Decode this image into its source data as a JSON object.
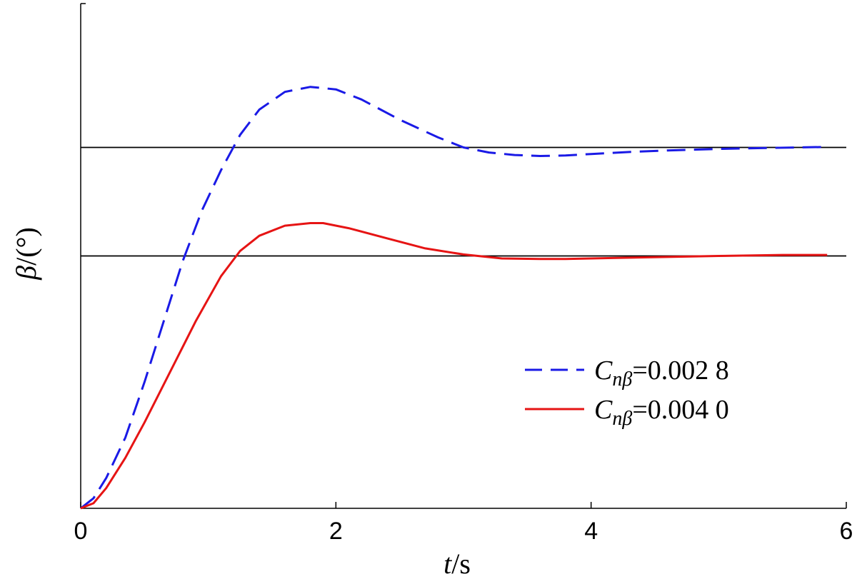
{
  "chart_data": {
    "type": "line",
    "title": "",
    "xlabel": {
      "var": "t",
      "sep": "/",
      "unit": "s"
    },
    "ylabel": {
      "var": "β",
      "sep": "/",
      "unit": "(°)"
    },
    "xlim": [
      0,
      6
    ],
    "x_ticks": [
      "0",
      "2",
      "4",
      "6"
    ],
    "y_ticks": [],
    "reference_lines": [
      {
        "name": "steady-state-upper",
        "y": 0.715
      },
      {
        "name": "steady-state-lower",
        "y": 0.5
      }
    ],
    "legend": {
      "position": "lower-right"
    },
    "series": [
      {
        "name": "C_nβ=0.002 8",
        "legend_main": "C",
        "legend_sub": "nβ",
        "legend_value": "=0.002 8",
        "color": "#1a1ae6",
        "style": "dashed",
        "x": [
          0,
          0.1,
          0.2,
          0.35,
          0.5,
          0.65,
          0.8,
          0.95,
          1.1,
          1.25,
          1.4,
          1.6,
          1.8,
          2.0,
          2.2,
          2.5,
          2.8,
          3.0,
          3.2,
          3.4,
          3.6,
          3.8,
          4.0,
          4.3,
          4.6,
          5.0,
          5.4,
          5.85
        ],
        "y": [
          0,
          0.02,
          0.06,
          0.14,
          0.25,
          0.37,
          0.49,
          0.59,
          0.67,
          0.74,
          0.79,
          0.825,
          0.835,
          0.83,
          0.81,
          0.77,
          0.735,
          0.715,
          0.705,
          0.7,
          0.698,
          0.699,
          0.702,
          0.706,
          0.709,
          0.712,
          0.714,
          0.716
        ]
      },
      {
        "name": "C_nβ=0.004 0",
        "legend_main": "C",
        "legend_sub": "nβ",
        "legend_value": "=0.004 0",
        "color": "#e61414",
        "style": "solid",
        "x": [
          0,
          0.1,
          0.2,
          0.35,
          0.5,
          0.7,
          0.9,
          1.1,
          1.25,
          1.4,
          1.6,
          1.8,
          1.9,
          2.1,
          2.4,
          2.7,
          3.0,
          3.3,
          3.6,
          3.8,
          4.2,
          4.6,
          5.0,
          5.5,
          5.85
        ],
        "y": [
          0,
          0.01,
          0.04,
          0.1,
          0.17,
          0.27,
          0.37,
          0.46,
          0.51,
          0.54,
          0.56,
          0.565,
          0.565,
          0.555,
          0.535,
          0.515,
          0.503,
          0.495,
          0.494,
          0.494,
          0.496,
          0.498,
          0.5,
          0.502,
          0.502
        ]
      }
    ]
  }
}
